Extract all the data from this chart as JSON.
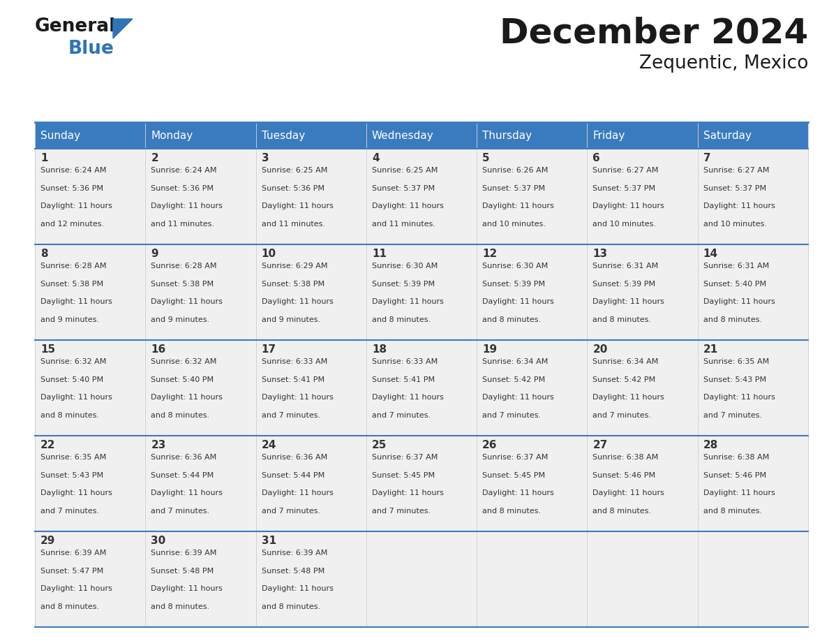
{
  "title": "December 2024",
  "subtitle": "Zequentic, Mexico",
  "header_color": "#3a7bbf",
  "header_text_color": "#ffffff",
  "cell_bg_color": "#f0f0f0",
  "border_color": "#3a7bbf",
  "text_color": "#333333",
  "day_names": [
    "Sunday",
    "Monday",
    "Tuesday",
    "Wednesday",
    "Thursday",
    "Friday",
    "Saturday"
  ],
  "days": [
    {
      "date": 1,
      "row": 0,
      "col": 0,
      "sunrise": "6:24 AM",
      "sunset": "5:36 PM",
      "daylight_hours": 11,
      "daylight_minutes": 12
    },
    {
      "date": 2,
      "row": 0,
      "col": 1,
      "sunrise": "6:24 AM",
      "sunset": "5:36 PM",
      "daylight_hours": 11,
      "daylight_minutes": 11
    },
    {
      "date": 3,
      "row": 0,
      "col": 2,
      "sunrise": "6:25 AM",
      "sunset": "5:36 PM",
      "daylight_hours": 11,
      "daylight_minutes": 11
    },
    {
      "date": 4,
      "row": 0,
      "col": 3,
      "sunrise": "6:25 AM",
      "sunset": "5:37 PM",
      "daylight_hours": 11,
      "daylight_minutes": 11
    },
    {
      "date": 5,
      "row": 0,
      "col": 4,
      "sunrise": "6:26 AM",
      "sunset": "5:37 PM",
      "daylight_hours": 11,
      "daylight_minutes": 10
    },
    {
      "date": 6,
      "row": 0,
      "col": 5,
      "sunrise": "6:27 AM",
      "sunset": "5:37 PM",
      "daylight_hours": 11,
      "daylight_minutes": 10
    },
    {
      "date": 7,
      "row": 0,
      "col": 6,
      "sunrise": "6:27 AM",
      "sunset": "5:37 PM",
      "daylight_hours": 11,
      "daylight_minutes": 10
    },
    {
      "date": 8,
      "row": 1,
      "col": 0,
      "sunrise": "6:28 AM",
      "sunset": "5:38 PM",
      "daylight_hours": 11,
      "daylight_minutes": 9
    },
    {
      "date": 9,
      "row": 1,
      "col": 1,
      "sunrise": "6:28 AM",
      "sunset": "5:38 PM",
      "daylight_hours": 11,
      "daylight_minutes": 9
    },
    {
      "date": 10,
      "row": 1,
      "col": 2,
      "sunrise": "6:29 AM",
      "sunset": "5:38 PM",
      "daylight_hours": 11,
      "daylight_minutes": 9
    },
    {
      "date": 11,
      "row": 1,
      "col": 3,
      "sunrise": "6:30 AM",
      "sunset": "5:39 PM",
      "daylight_hours": 11,
      "daylight_minutes": 8
    },
    {
      "date": 12,
      "row": 1,
      "col": 4,
      "sunrise": "6:30 AM",
      "sunset": "5:39 PM",
      "daylight_hours": 11,
      "daylight_minutes": 8
    },
    {
      "date": 13,
      "row": 1,
      "col": 5,
      "sunrise": "6:31 AM",
      "sunset": "5:39 PM",
      "daylight_hours": 11,
      "daylight_minutes": 8
    },
    {
      "date": 14,
      "row": 1,
      "col": 6,
      "sunrise": "6:31 AM",
      "sunset": "5:40 PM",
      "daylight_hours": 11,
      "daylight_minutes": 8
    },
    {
      "date": 15,
      "row": 2,
      "col": 0,
      "sunrise": "6:32 AM",
      "sunset": "5:40 PM",
      "daylight_hours": 11,
      "daylight_minutes": 8
    },
    {
      "date": 16,
      "row": 2,
      "col": 1,
      "sunrise": "6:32 AM",
      "sunset": "5:40 PM",
      "daylight_hours": 11,
      "daylight_minutes": 8
    },
    {
      "date": 17,
      "row": 2,
      "col": 2,
      "sunrise": "6:33 AM",
      "sunset": "5:41 PM",
      "daylight_hours": 11,
      "daylight_minutes": 7
    },
    {
      "date": 18,
      "row": 2,
      "col": 3,
      "sunrise": "6:33 AM",
      "sunset": "5:41 PM",
      "daylight_hours": 11,
      "daylight_minutes": 7
    },
    {
      "date": 19,
      "row": 2,
      "col": 4,
      "sunrise": "6:34 AM",
      "sunset": "5:42 PM",
      "daylight_hours": 11,
      "daylight_minutes": 7
    },
    {
      "date": 20,
      "row": 2,
      "col": 5,
      "sunrise": "6:34 AM",
      "sunset": "5:42 PM",
      "daylight_hours": 11,
      "daylight_minutes": 7
    },
    {
      "date": 21,
      "row": 2,
      "col": 6,
      "sunrise": "6:35 AM",
      "sunset": "5:43 PM",
      "daylight_hours": 11,
      "daylight_minutes": 7
    },
    {
      "date": 22,
      "row": 3,
      "col": 0,
      "sunrise": "6:35 AM",
      "sunset": "5:43 PM",
      "daylight_hours": 11,
      "daylight_minutes": 7
    },
    {
      "date": 23,
      "row": 3,
      "col": 1,
      "sunrise": "6:36 AM",
      "sunset": "5:44 PM",
      "daylight_hours": 11,
      "daylight_minutes": 7
    },
    {
      "date": 24,
      "row": 3,
      "col": 2,
      "sunrise": "6:36 AM",
      "sunset": "5:44 PM",
      "daylight_hours": 11,
      "daylight_minutes": 7
    },
    {
      "date": 25,
      "row": 3,
      "col": 3,
      "sunrise": "6:37 AM",
      "sunset": "5:45 PM",
      "daylight_hours": 11,
      "daylight_minutes": 7
    },
    {
      "date": 26,
      "row": 3,
      "col": 4,
      "sunrise": "6:37 AM",
      "sunset": "5:45 PM",
      "daylight_hours": 11,
      "daylight_minutes": 8
    },
    {
      "date": 27,
      "row": 3,
      "col": 5,
      "sunrise": "6:38 AM",
      "sunset": "5:46 PM",
      "daylight_hours": 11,
      "daylight_minutes": 8
    },
    {
      "date": 28,
      "row": 3,
      "col": 6,
      "sunrise": "6:38 AM",
      "sunset": "5:46 PM",
      "daylight_hours": 11,
      "daylight_minutes": 8
    },
    {
      "date": 29,
      "row": 4,
      "col": 0,
      "sunrise": "6:39 AM",
      "sunset": "5:47 PM",
      "daylight_hours": 11,
      "daylight_minutes": 8
    },
    {
      "date": 30,
      "row": 4,
      "col": 1,
      "sunrise": "6:39 AM",
      "sunset": "5:48 PM",
      "daylight_hours": 11,
      "daylight_minutes": 8
    },
    {
      "date": 31,
      "row": 4,
      "col": 2,
      "sunrise": "6:39 AM",
      "sunset": "5:48 PM",
      "daylight_hours": 11,
      "daylight_minutes": 8
    }
  ],
  "num_rows": 5,
  "logo_general_color": "#1a1a1a",
  "logo_blue_color": "#2e75b6",
  "logo_triangle_color": "#2e75b6",
  "fig_width": 11.88,
  "fig_height": 9.18,
  "dpi": 100
}
